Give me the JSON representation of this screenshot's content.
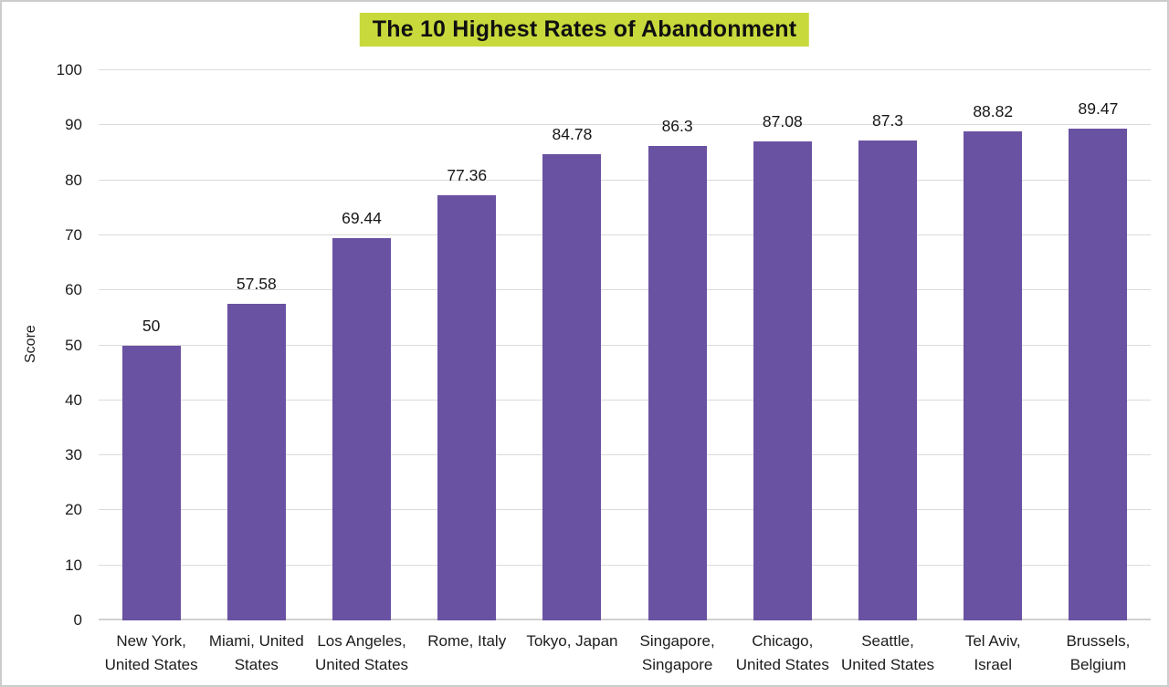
{
  "colors": {
    "bar": "#6a52a2",
    "title_highlight": "#c8d93c",
    "gridline": "#dbdbdb",
    "baseline": "#d2d0d0",
    "text": "#1c1c1c",
    "frame_border": "#cccccc"
  },
  "chart_data": {
    "type": "bar",
    "title": "The 10 Highest Rates of Abandonment",
    "xlabel": "",
    "ylabel": "Score",
    "ylim": [
      0,
      100
    ],
    "ytick_step": 10,
    "grid": true,
    "legend": false,
    "categories": [
      "New York,\nUnited States",
      "Miami, United\nStates",
      "Los Angeles,\nUnited States",
      "Rome, Italy",
      "Tokyo, Japan",
      "Singapore,\nSingapore",
      "Chicago,\nUnited States",
      "Seattle,\nUnited States",
      "Tel Aviv,\nIsrael",
      "Brussels,\nBelgium"
    ],
    "values": [
      50,
      57.58,
      69.44,
      77.36,
      84.78,
      86.3,
      87.08,
      87.3,
      88.82,
      89.47
    ],
    "value_labels": [
      "50",
      "57.58",
      "69.44",
      "77.36",
      "84.78",
      "86.3",
      "87.08",
      "87.3",
      "88.82",
      "89.47"
    ]
  }
}
